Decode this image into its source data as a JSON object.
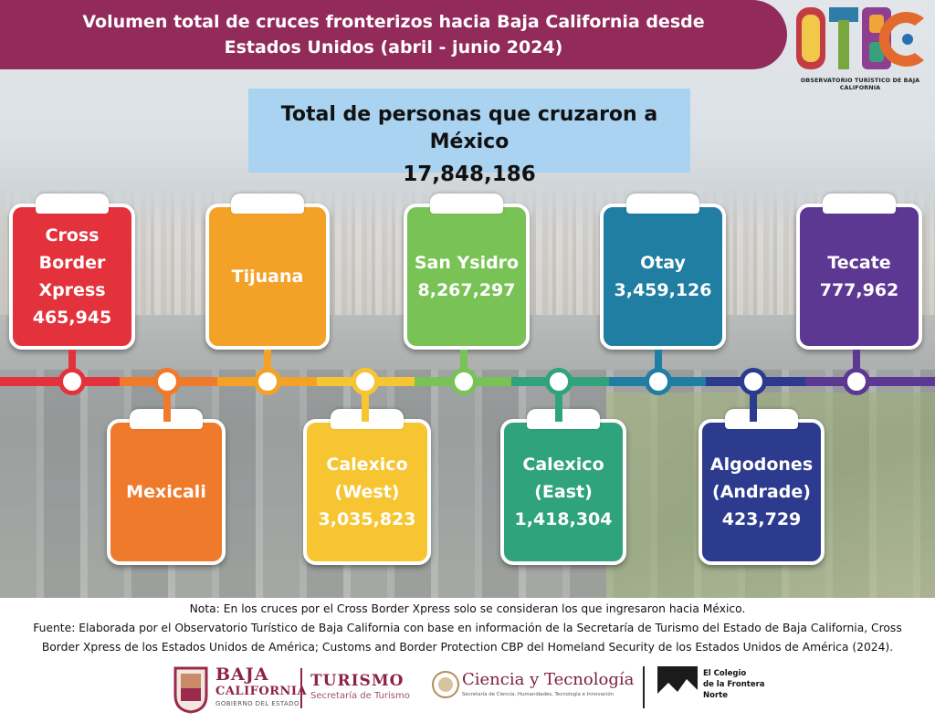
{
  "header": {
    "title_line1": "Volumen total de cruces fronterizos hacia Baja California desde",
    "title_line2": "Estados Unidos (abril - junio 2024)"
  },
  "logo": {
    "letters": "OTBC",
    "caption": "OBSERVATORIO TURÍSTICO DE BAJA CALIFORNIA"
  },
  "total": {
    "label": "Total de personas que cruzaron a México",
    "value": "17,848,186"
  },
  "crossings": [
    {
      "lines": [
        "Cross Border",
        "Xpress",
        "465,945"
      ],
      "color": "#e3323c"
    },
    {
      "lines": [
        "Mexicali"
      ],
      "color": "#f07a2c"
    },
    {
      "lines": [
        "Tijuana"
      ],
      "color": "#f3a227"
    },
    {
      "lines": [
        "Calexico",
        "(West)",
        "3,035,823"
      ],
      "color": "#f7c531"
    },
    {
      "lines": [
        "San Ysidro",
        "8,267,297"
      ],
      "color": "#78c256"
    },
    {
      "lines": [
        "Calexico",
        "(East)",
        "1,418,304"
      ],
      "color": "#2fa37c"
    },
    {
      "lines": [
        "Otay",
        "3,459,126"
      ],
      "color": "#1f7ea1"
    },
    {
      "lines": [
        "Algodones",
        "(Andrade)",
        "423,729"
      ],
      "color": "#2c3b8e"
    },
    {
      "lines": [
        "Tecate",
        "777,962"
      ],
      "color": "#5d3893"
    }
  ],
  "notes": {
    "nota": "Nota: En los cruces por el Cross Border Xpress solo se consideran los que ingresaron hacia México.",
    "fuente_line1": "Fuente: Elaborada por el Observatorio Turístico de Baja California con base en información de la Secretaría de Turismo del Estado de Baja California, Cross",
    "fuente_line2": "Border Xpress de los Estados Unidos de América; Customs and Border Protection CBP del Homeland Security de los Estados Unidos de América (2024)."
  },
  "footer_logos": {
    "baja_line1": "BAJA",
    "baja_line2": "CALIFORNIA",
    "baja_line3": "GOBIERNO DEL ESTADO",
    "turismo_line1": "TURISMO",
    "turismo_line2": "Secretaría de Turismo",
    "ciencia_line1": "Ciencia y Tecnología",
    "ciencia_line2": "Secretaría de Ciencia, Humanidades, Tecnología e Innovación",
    "colef_line1": "El Colegio",
    "colef_line2": "de la Frontera",
    "colef_line3": "Norte"
  },
  "colors": {
    "banner": "#922a5a",
    "total_box": "#a9d3f1"
  }
}
